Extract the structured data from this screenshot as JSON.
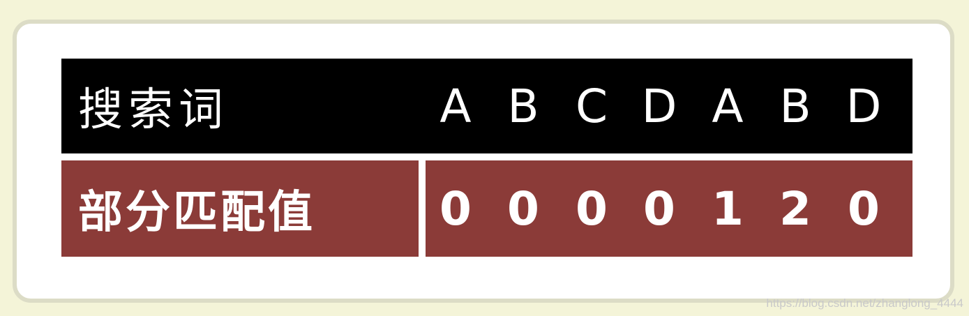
{
  "table": {
    "header_label": "搜索词",
    "header_values": [
      "A",
      "B",
      "C",
      "D",
      "A",
      "B",
      "D"
    ],
    "row_label": "部分匹配值",
    "row_values": [
      "0",
      "0",
      "0",
      "0",
      "1",
      "2",
      "0"
    ]
  },
  "watermark": "https://blog.csdn.net/zhanglong_4444",
  "colors": {
    "page_background": "#f4f4d8",
    "header_row": "#000000",
    "value_row": "#8b3b38",
    "text": "#ffffff"
  }
}
